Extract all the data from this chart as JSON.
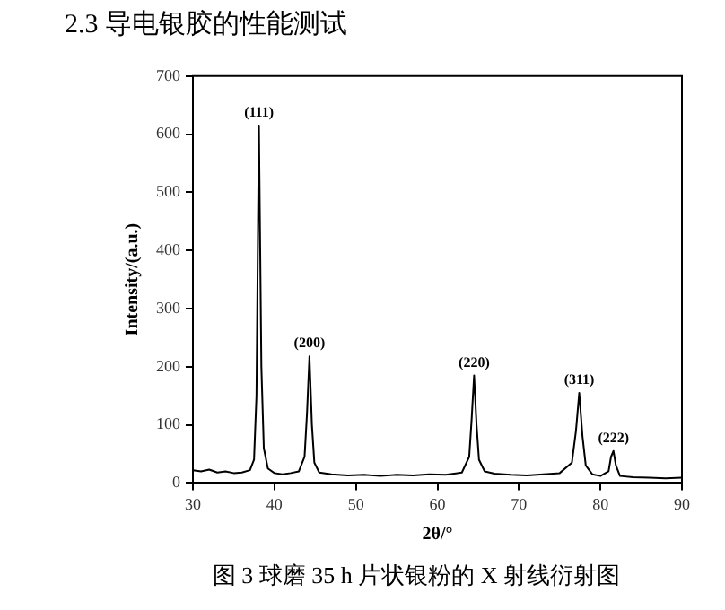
{
  "chart_data": {
    "type": "line",
    "title": "2.3  导电银胶的性能测试",
    "xlabel": "2θ/°",
    "ylabel": "Intensity/(a.u.)",
    "x": [
      30,
      31,
      32,
      33,
      34,
      35,
      36,
      37,
      37.5,
      37.8,
      38.1,
      38.4,
      38.7,
      39.2,
      40,
      41,
      42,
      43,
      43.7,
      44.0,
      44.3,
      44.6,
      44.9,
      45.5,
      47,
      49,
      51,
      53,
      55,
      57,
      59,
      61,
      63,
      63.9,
      64.2,
      64.5,
      64.8,
      65.1,
      65.8,
      67,
      69,
      71,
      73,
      75,
      76.5,
      77,
      77.4,
      77.8,
      78.2,
      79,
      80,
      81,
      81.3,
      81.6,
      81.9,
      82.4,
      84,
      86,
      88,
      90
    ],
    "series": [
      {
        "color": "#000000",
        "values": [
          22,
          20,
          23,
          18,
          20,
          17,
          18,
          22,
          40,
          150,
          615,
          200,
          60,
          25,
          17,
          15,
          17,
          20,
          45,
          120,
          218,
          100,
          35,
          18,
          15,
          13,
          14,
          12,
          14,
          13,
          15,
          14,
          18,
          45,
          110,
          185,
          100,
          40,
          20,
          16,
          14,
          13,
          15,
          17,
          35,
          90,
          155,
          80,
          30,
          15,
          12,
          20,
          45,
          55,
          30,
          12,
          10,
          9,
          8,
          9
        ]
      }
    ],
    "xlim": [
      30,
      90
    ],
    "xticks": [
      30,
      40,
      50,
      60,
      70,
      80,
      90
    ],
    "ylim": [
      0,
      700
    ],
    "yticks": [
      0,
      100,
      200,
      300,
      400,
      500,
      600,
      700
    ],
    "marker": "none",
    "line_style": "solid",
    "grid": false,
    "legend": false,
    "annotations": [
      {
        "text": "(111)",
        "x": 38.1,
        "y": 615
      },
      {
        "text": "(200)",
        "x": 44.3,
        "y": 218
      },
      {
        "text": "(220)",
        "x": 64.5,
        "y": 185
      },
      {
        "text": "(311)",
        "x": 77.4,
        "y": 155
      },
      {
        "text": "(222)",
        "x": 81.6,
        "y": 55
      },
      "图 3  球磨 35 h 片状银粉的 X 射线衍射图"
    ]
  }
}
